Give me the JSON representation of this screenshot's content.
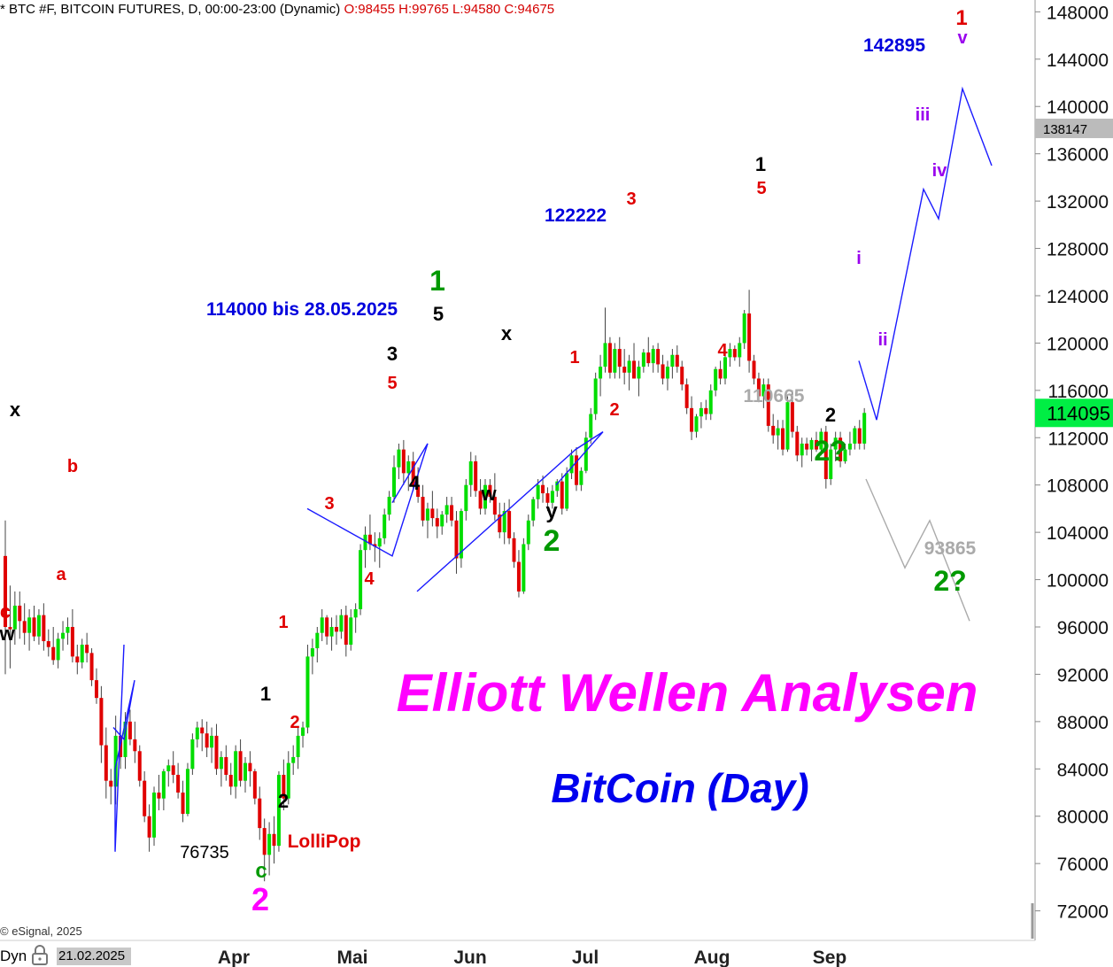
{
  "header": {
    "symbol_text": "* BTC #F, BITCOIN FUTURES, D, 00:00-23:00 (Dynamic)",
    "ohlc_text": "O:98455 H:99765 L:94580 C:94675"
  },
  "footer": {
    "credit": "© eSignal, 2025",
    "dyn_label": "Dyn",
    "start_date": "21.02.2025"
  },
  "colors": {
    "up_candle": "#00dd00",
    "down_candle": "#e00000",
    "wave_path": "#1a1aff",
    "alt_path": "#aaaaaa",
    "last_price_box": "#00ee44",
    "marker_box": "#bbbbbb",
    "title": "#ff00ff",
    "subtitle": "#0000ee"
  },
  "chart_data": {
    "type": "candlestick",
    "y_ticks": [
      "72000",
      "76000",
      "80000",
      "84000",
      "88000",
      "92000",
      "96000",
      "100000",
      "104000",
      "108000",
      "112000",
      "116000",
      "120000",
      "124000",
      "128000",
      "132000",
      "136000",
      "140000",
      "144000",
      "148000"
    ],
    "y_range": [
      69500,
      149000
    ],
    "x_labels": [
      "Apr",
      "Mai",
      "Jun",
      "Jul",
      "Aug",
      "Sep"
    ],
    "last_price": "114095",
    "marker_price": "138147",
    "price_labels": [
      "142895",
      "122222",
      "114000 bis 28.05.2025",
      "110665",
      "93865",
      "76735"
    ],
    "title": "Elliott Wellen Analysen",
    "subtitle": "BitCoin (Day)",
    "wave_labels": [
      {
        "text": "x",
        "color": "#000000"
      },
      {
        "text": "b",
        "color": "#e00000"
      },
      {
        "text": "a",
        "color": "#e00000"
      },
      {
        "text": "c",
        "color": "#e00000"
      },
      {
        "text": "w",
        "color": "#000000"
      },
      {
        "text": "1",
        "color": "#000000"
      },
      {
        "text": "2",
        "color": "#e00000"
      },
      {
        "text": "2",
        "color": "#000000"
      },
      {
        "text": "1",
        "color": "#e00000"
      },
      {
        "text": "c",
        "color": "#009900"
      },
      {
        "text": "2",
        "color": "#ff00ff"
      },
      {
        "text": "LolliPop",
        "color": "#e00000"
      },
      {
        "text": "3",
        "color": "#e00000"
      },
      {
        "text": "4",
        "color": "#e00000"
      },
      {
        "text": "3",
        "color": "#000000"
      },
      {
        "text": "5",
        "color": "#e00000"
      },
      {
        "text": "4",
        "color": "#000000"
      },
      {
        "text": "1",
        "color": "#009900"
      },
      {
        "text": "5",
        "color": "#000000"
      },
      {
        "text": "x",
        "color": "#000000"
      },
      {
        "text": "w",
        "color": "#000000"
      },
      {
        "text": "y",
        "color": "#000000"
      },
      {
        "text": "2",
        "color": "#009900"
      },
      {
        "text": "1",
        "color": "#e00000"
      },
      {
        "text": "2",
        "color": "#e00000"
      },
      {
        "text": "3",
        "color": "#e00000"
      },
      {
        "text": "4",
        "color": "#e00000"
      },
      {
        "text": "1",
        "color": "#000000"
      },
      {
        "text": "5",
        "color": "#e00000"
      },
      {
        "text": "2",
        "color": "#000000"
      },
      {
        "text": "2?",
        "color": "#009900"
      },
      {
        "text": "i",
        "color": "#9900ee"
      },
      {
        "text": "ii",
        "color": "#9900ee"
      },
      {
        "text": "iii",
        "color": "#9900ee"
      },
      {
        "text": "iv",
        "color": "#9900ee"
      },
      {
        "text": "v",
        "color": "#9900ee"
      },
      {
        "text": "1",
        "color": "#e00000"
      },
      {
        "text": "2?",
        "color": "#009900"
      }
    ],
    "wave_path_prices": [
      87500,
      86500,
      91500,
      84000,
      77000,
      94500,
      106000,
      102000,
      111500,
      106500,
      99000,
      111000,
      112500,
      108000,
      118500,
      113500,
      133000,
      130500,
      141500,
      135000
    ],
    "alt_path_prices": [
      108500,
      101000,
      105000,
      96500
    ],
    "candles": [
      [
        102000,
        105000,
        92000,
        96000
      ],
      [
        96000,
        99500,
        92500,
        95800
      ],
      [
        95800,
        99000,
        94500,
        97800
      ],
      [
        97800,
        99000,
        95000,
        96500
      ],
      [
        96500,
        98000,
        94500,
        95500
      ],
      [
        95500,
        97500,
        94000,
        96800
      ],
      [
        96800,
        97800,
        94800,
        95200
      ],
      [
        95200,
        97500,
        94500,
        97000
      ],
      [
        97000,
        98000,
        94000,
        94800
      ],
      [
        94800,
        95800,
        93500,
        94300
      ],
      [
        94300,
        96000,
        92800,
        93200
      ],
      [
        93200,
        95500,
        92500,
        95000
      ],
      [
        95000,
        96500,
        94000,
        95500
      ],
      [
        95500,
        96800,
        94500,
        96000
      ],
      [
        96000,
        97500,
        93000,
        93500
      ],
      [
        93500,
        94500,
        92000,
        93000
      ],
      [
        93000,
        95000,
        92500,
        94500
      ],
      [
        94500,
        95500,
        93000,
        93800
      ],
      [
        93800,
        94200,
        91000,
        91500
      ],
      [
        91500,
        92500,
        89500,
        90000
      ],
      [
        90000,
        91000,
        84500,
        86000
      ],
      [
        86000,
        87500,
        81500,
        83000
      ],
      [
        83000,
        84000,
        81000,
        82500
      ],
      [
        82500,
        88500,
        81000,
        86800
      ],
      [
        86800,
        87500,
        84000,
        85000
      ],
      [
        85000,
        88800,
        84000,
        88000
      ],
      [
        88000,
        89000,
        86000,
        86500
      ],
      [
        86500,
        88000,
        84500,
        85500
      ],
      [
        85500,
        86000,
        82500,
        83000
      ],
      [
        83000,
        83800,
        79500,
        80000
      ],
      [
        80000,
        81000,
        77000,
        78200
      ],
      [
        78200,
        82500,
        77500,
        82000
      ],
      [
        82000,
        83500,
        80500,
        81500
      ],
      [
        81500,
        84000,
        80500,
        83800
      ],
      [
        83800,
        84800,
        82500,
        84300
      ],
      [
        84300,
        85500,
        82800,
        83500
      ],
      [
        83500,
        84500,
        81500,
        82000
      ],
      [
        82000,
        83000,
        79500,
        80200
      ],
      [
        80200,
        84500,
        80000,
        84000
      ],
      [
        84000,
        87000,
        83500,
        86500
      ],
      [
        86500,
        88000,
        85800,
        87500
      ],
      [
        87500,
        88200,
        85500,
        87000
      ],
      [
        87000,
        88000,
        85000,
        85800
      ],
      [
        85800,
        87500,
        84500,
        86800
      ],
      [
        86800,
        87800,
        83500,
        84000
      ],
      [
        84000,
        85500,
        82500,
        85000
      ],
      [
        85000,
        86000,
        83000,
        83500
      ],
      [
        83500,
        84500,
        81800,
        82500
      ],
      [
        82500,
        86000,
        81500,
        85500
      ],
      [
        85500,
        86500,
        82500,
        83000
      ],
      [
        83000,
        85000,
        82000,
        84500
      ],
      [
        84500,
        85500,
        82500,
        83800
      ],
      [
        83800,
        84000,
        81000,
        81500
      ],
      [
        81500,
        82500,
        78000,
        79000
      ],
      [
        79000,
        79800,
        74500,
        76735
      ],
      [
        76735,
        79500,
        75000,
        78500
      ],
      [
        78500,
        80000,
        76000,
        77500
      ],
      [
        77500,
        83800,
        77000,
        83500
      ],
      [
        83500,
        84800,
        80500,
        81500
      ],
      [
        81500,
        85500,
        81000,
        84500
      ],
      [
        84500,
        86000,
        83500,
        85000
      ],
      [
        85000,
        87500,
        84000,
        86800
      ],
      [
        86800,
        88000,
        85800,
        87500
      ],
      [
        87500,
        94500,
        87000,
        93500
      ],
      [
        93500,
        95000,
        92000,
        94200
      ],
      [
        94200,
        96000,
        93000,
        95500
      ],
      [
        95500,
        97500,
        94800,
        96800
      ],
      [
        96800,
        97000,
        94500,
        95200
      ],
      [
        95200,
        96800,
        94000,
        96000
      ],
      [
        96000,
        97000,
        94500,
        95600
      ],
      [
        95600,
        97500,
        95000,
        97000
      ],
      [
        97000,
        97800,
        93500,
        94500
      ],
      [
        94500,
        97500,
        94000,
        96800
      ],
      [
        96800,
        98000,
        95500,
        97500
      ],
      [
        97500,
        103000,
        97000,
        102500
      ],
      [
        102500,
        104500,
        101000,
        103800
      ],
      [
        103800,
        105500,
        102500,
        103000
      ],
      [
        103000,
        104000,
        101500,
        102800
      ],
      [
        102800,
        104000,
        101000,
        103500
      ],
      [
        103500,
        106000,
        103000,
        105500
      ],
      [
        105500,
        107500,
        105000,
        107000
      ],
      [
        107000,
        110500,
        106500,
        109500
      ],
      [
        109500,
        111500,
        108500,
        111000
      ],
      [
        111000,
        111800,
        108000,
        109000
      ],
      [
        109000,
        110500,
        107500,
        110000
      ],
      [
        110000,
        110800,
        107500,
        108000
      ],
      [
        108000,
        109500,
        106500,
        107000
      ],
      [
        107000,
        108000,
        104500,
        105000
      ],
      [
        105000,
        106500,
        103500,
        106000
      ],
      [
        106000,
        107500,
        104500,
        105200
      ],
      [
        105200,
        106000,
        103500,
        104500
      ],
      [
        104500,
        105800,
        103800,
        105500
      ],
      [
        105500,
        107000,
        104800,
        106300
      ],
      [
        106300,
        107000,
        104500,
        105000
      ],
      [
        105000,
        105800,
        100500,
        101800
      ],
      [
        101800,
        106000,
        101000,
        105800
      ],
      [
        105800,
        108500,
        105000,
        108000
      ],
      [
        108000,
        110800,
        107000,
        110000
      ],
      [
        110000,
        110500,
        107000,
        107500
      ],
      [
        107500,
        108500,
        105500,
        106000
      ],
      [
        106000,
        108500,
        105500,
        108000
      ],
      [
        108000,
        108500,
        106500,
        107000
      ],
      [
        107000,
        109000,
        105000,
        105500
      ],
      [
        105500,
        106500,
        103500,
        104000
      ],
      [
        104000,
        106500,
        103000,
        105800
      ],
      [
        105800,
        106800,
        103000,
        103500
      ],
      [
        103500,
        104000,
        101000,
        101500
      ],
      [
        101500,
        102500,
        98500,
        99000
      ],
      [
        99000,
        103500,
        98800,
        103000
      ],
      [
        103000,
        105500,
        102500,
        105000
      ],
      [
        105000,
        107000,
        104500,
        106800
      ],
      [
        106800,
        108500,
        106000,
        108000
      ],
      [
        108000,
        108800,
        106500,
        107300
      ],
      [
        107300,
        107800,
        105800,
        106500
      ],
      [
        106500,
        108000,
        106000,
        107500
      ],
      [
        107500,
        108500,
        107000,
        108300
      ],
      [
        108300,
        109000,
        105500,
        106000
      ],
      [
        106000,
        109500,
        105800,
        109000
      ],
      [
        109000,
        111000,
        108500,
        110500
      ],
      [
        110500,
        111200,
        107500,
        108000
      ],
      [
        108000,
        109500,
        107500,
        109200
      ],
      [
        109200,
        112500,
        109000,
        112000
      ],
      [
        112000,
        114500,
        111500,
        114000
      ],
      [
        114000,
        117500,
        113500,
        117000
      ],
      [
        117000,
        119000,
        115500,
        118000
      ],
      [
        118000,
        123000,
        117500,
        120000
      ],
      [
        120000,
        120500,
        117000,
        117500
      ],
      [
        117500,
        120000,
        117000,
        119500
      ],
      [
        119500,
        120500,
        117000,
        118000
      ],
      [
        118000,
        119500,
        116500,
        117500
      ],
      [
        117500,
        119000,
        116000,
        118500
      ],
      [
        118500,
        120000,
        117000,
        117000
      ],
      [
        117000,
        118500,
        115500,
        118000
      ],
      [
        118000,
        119500,
        117500,
        119200
      ],
      [
        119200,
        120500,
        118000,
        118300
      ],
      [
        118300,
        119800,
        117500,
        119500
      ],
      [
        119500,
        120000,
        117500,
        118200
      ],
      [
        118200,
        119000,
        116500,
        117000
      ],
      [
        117000,
        118500,
        116000,
        118000
      ],
      [
        118000,
        119500,
        117000,
        119000
      ],
      [
        119000,
        119800,
        117500,
        118000
      ],
      [
        118000,
        118500,
        116000,
        116500
      ],
      [
        116500,
        117000,
        114000,
        114500
      ],
      [
        114500,
        115500,
        111800,
        112500
      ],
      [
        112500,
        114000,
        112000,
        113800
      ],
      [
        113800,
        115000,
        112800,
        114500
      ],
      [
        114500,
        115200,
        113500,
        114000
      ],
      [
        114000,
        116500,
        113500,
        116000
      ],
      [
        116000,
        118000,
        115500,
        117800
      ],
      [
        117800,
        118500,
        116500,
        117000
      ],
      [
        117000,
        119000,
        116500,
        118800
      ],
      [
        118800,
        120000,
        118000,
        119500
      ],
      [
        119500,
        119800,
        118500,
        118800
      ],
      [
        118800,
        120500,
        118000,
        120000
      ],
      [
        120000,
        122800,
        119500,
        122500
      ],
      [
        122500,
        124500,
        117500,
        118500
      ],
      [
        118500,
        119000,
        116500,
        117000
      ],
      [
        117000,
        117500,
        115000,
        115500
      ],
      [
        115500,
        117000,
        114500,
        116500
      ],
      [
        116500,
        117000,
        112500,
        113000
      ],
      [
        113000,
        114000,
        111500,
        112200
      ],
      [
        112200,
        113500,
        111000,
        112800
      ],
      [
        112800,
        113500,
        110500,
        111000
      ],
      [
        111000,
        115500,
        110800,
        115000
      ],
      [
        115000,
        116000,
        112000,
        112500
      ],
      [
        112500,
        113000,
        110000,
        110500
      ],
      [
        110500,
        112000,
        109500,
        111500
      ],
      [
        111500,
        112000,
        110500,
        111000
      ],
      [
        111000,
        112000,
        110000,
        111800
      ],
      [
        111800,
        112500,
        110800,
        111000
      ],
      [
        111000,
        112800,
        110500,
        112500
      ],
      [
        112500,
        113000,
        107700,
        108500
      ],
      [
        108500,
        111500,
        108000,
        111000
      ],
      [
        111000,
        112500,
        110000,
        112000
      ],
      [
        112000,
        112500,
        109500,
        110000
      ],
      [
        110000,
        111500,
        109800,
        111000
      ],
      [
        111000,
        112500,
        110500,
        111500
      ],
      [
        111500,
        113000,
        111000,
        112800
      ],
      [
        112800,
        113500,
        111000,
        111500
      ],
      [
        111500,
        114500,
        111000,
        114095
      ]
    ]
  }
}
